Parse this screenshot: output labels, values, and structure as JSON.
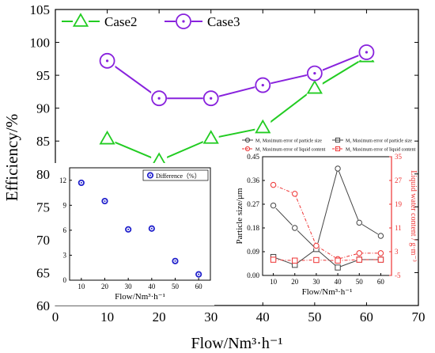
{
  "chart_data": [
    {
      "type": "line",
      "xlabel": "Flow/Nm³·h⁻¹",
      "ylabel": "Efficiency/%",
      "xlim": [
        0,
        70
      ],
      "ylim": [
        60,
        105
      ],
      "xticks": [
        0,
        10,
        20,
        30,
        40,
        50,
        60,
        70
      ],
      "yticks": [
        60,
        65,
        70,
        75,
        80,
        85,
        90,
        95,
        100,
        105
      ],
      "legend_position": "top-left",
      "series": [
        {
          "name": "Case2",
          "marker": "triangle",
          "color": "#22cc22",
          "x": [
            10,
            20,
            30,
            40,
            50,
            60
          ],
          "y": [
            85.3,
            82.0,
            85.4,
            87.0,
            93.0,
            97.8
          ]
        },
        {
          "name": "Case3",
          "marker": "circle-dot",
          "color": "#8822dd",
          "x": [
            10,
            20,
            30,
            40,
            50,
            60
          ],
          "y": [
            97.2,
            91.5,
            91.5,
            93.5,
            95.3,
            98.5
          ]
        }
      ]
    },
    {
      "type": "scatter",
      "xlabel": "Flow/Nm³·h⁻¹",
      "ylabel": "",
      "xlim": [
        5,
        65
      ],
      "ylim": [
        0,
        13.5
      ],
      "xticks": [
        10,
        20,
        30,
        40,
        50,
        60
      ],
      "yticks": [
        0,
        3,
        6,
        9,
        12
      ],
      "legend_position": "top-right",
      "series": [
        {
          "name": "Difference（%）",
          "marker": "circle-dot",
          "color": "#2222cc",
          "x": [
            10,
            20,
            30,
            40,
            50,
            60
          ],
          "y": [
            11.7,
            9.5,
            6.1,
            6.2,
            2.3,
            0.7
          ]
        }
      ]
    },
    {
      "type": "line",
      "xlabel": "Flow/Nm³·h⁻¹",
      "ylabel": "Particle size/μm",
      "y2label": "Liquid water content / g·m⁻³",
      "xlim": [
        5,
        65
      ],
      "ylim": [
        0,
        0.45
      ],
      "y2lim": [
        -5,
        35
      ],
      "xticks": [
        10,
        20,
        30,
        40,
        50,
        60
      ],
      "yticks": [
        "0.00",
        "0.09",
        "0.18",
        "0.27",
        "0.36",
        "0.45"
      ],
      "y2ticks": [
        -5,
        3,
        11,
        19,
        27,
        35
      ],
      "legend": [
        "M₁ Maximum error of particle size",
        "M₂ Maximum error of particle size",
        "M₁ Maximum error of liquid content",
        "M₂ Maximum error of liquid content"
      ],
      "series": [
        {
          "name": "M₁ Maximum error of particle size",
          "axis": "left",
          "marker": "circle",
          "color": "#444444",
          "dash": false,
          "x": [
            10,
            20,
            30,
            40,
            50,
            60
          ],
          "y": [
            0.265,
            0.18,
            0.1,
            0.405,
            0.2,
            0.15
          ]
        },
        {
          "name": "M₂ Maximum error of particle size",
          "axis": "left",
          "marker": "square",
          "color": "#444444",
          "dash": false,
          "x": [
            10,
            20,
            30,
            40,
            50,
            60
          ],
          "y": [
            0.07,
            0.04,
            0.1,
            0.03,
            0.06,
            0.06
          ]
        },
        {
          "name": "M₁ Maximum error of liquid content",
          "axis": "right",
          "marker": "circle",
          "color": "#ee3333",
          "dash": true,
          "x": [
            10,
            20,
            30,
            40,
            50,
            60
          ],
          "y": [
            25.5,
            22.5,
            5.0,
            0.5,
            2.5,
            2.5
          ]
        },
        {
          "name": "M₂ Maximum error of liquid content",
          "axis": "right",
          "marker": "square",
          "color": "#ee3333",
          "dash": true,
          "x": [
            10,
            20,
            30,
            40,
            50,
            60
          ],
          "y": [
            0.3,
            0.0,
            0.2,
            0.0,
            0.3,
            0.3
          ]
        }
      ]
    }
  ]
}
